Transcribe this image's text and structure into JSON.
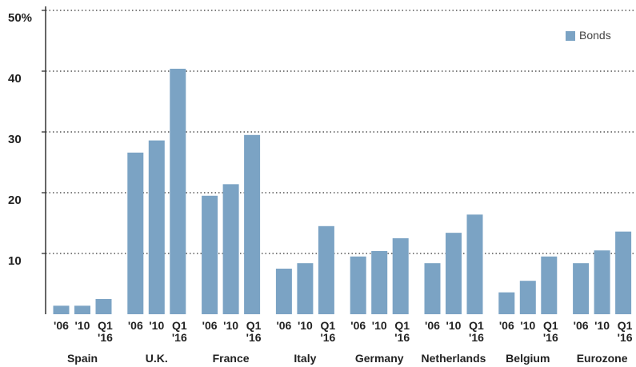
{
  "chart_data": {
    "type": "grouped_bar",
    "categories": [
      "Spain",
      "U.K.",
      "France",
      "Italy",
      "Germany",
      "Netherlands",
      "Belgium",
      "Eurozone"
    ],
    "periods": [
      "'06",
      "'10",
      "Q1\n'16"
    ],
    "series": [
      {
        "name": "Bonds",
        "color": "#7ba3c4",
        "values": [
          [
            1.4,
            1.4,
            2.5
          ],
          [
            26.6,
            28.6,
            40.4
          ],
          [
            19.5,
            21.4,
            29.5
          ],
          [
            7.5,
            8.4,
            14.5
          ],
          [
            9.5,
            10.4,
            12.5
          ],
          [
            8.4,
            13.4,
            16.4
          ],
          [
            3.6,
            5.5,
            9.5
          ],
          [
            8.4,
            10.5,
            13.6
          ]
        ]
      }
    ],
    "ylim": [
      0,
      50
    ],
    "yticks": [
      10,
      20,
      30,
      40,
      {
        "value": 50,
        "label": "50%"
      }
    ],
    "grid": true,
    "legend": "top-right"
  }
}
